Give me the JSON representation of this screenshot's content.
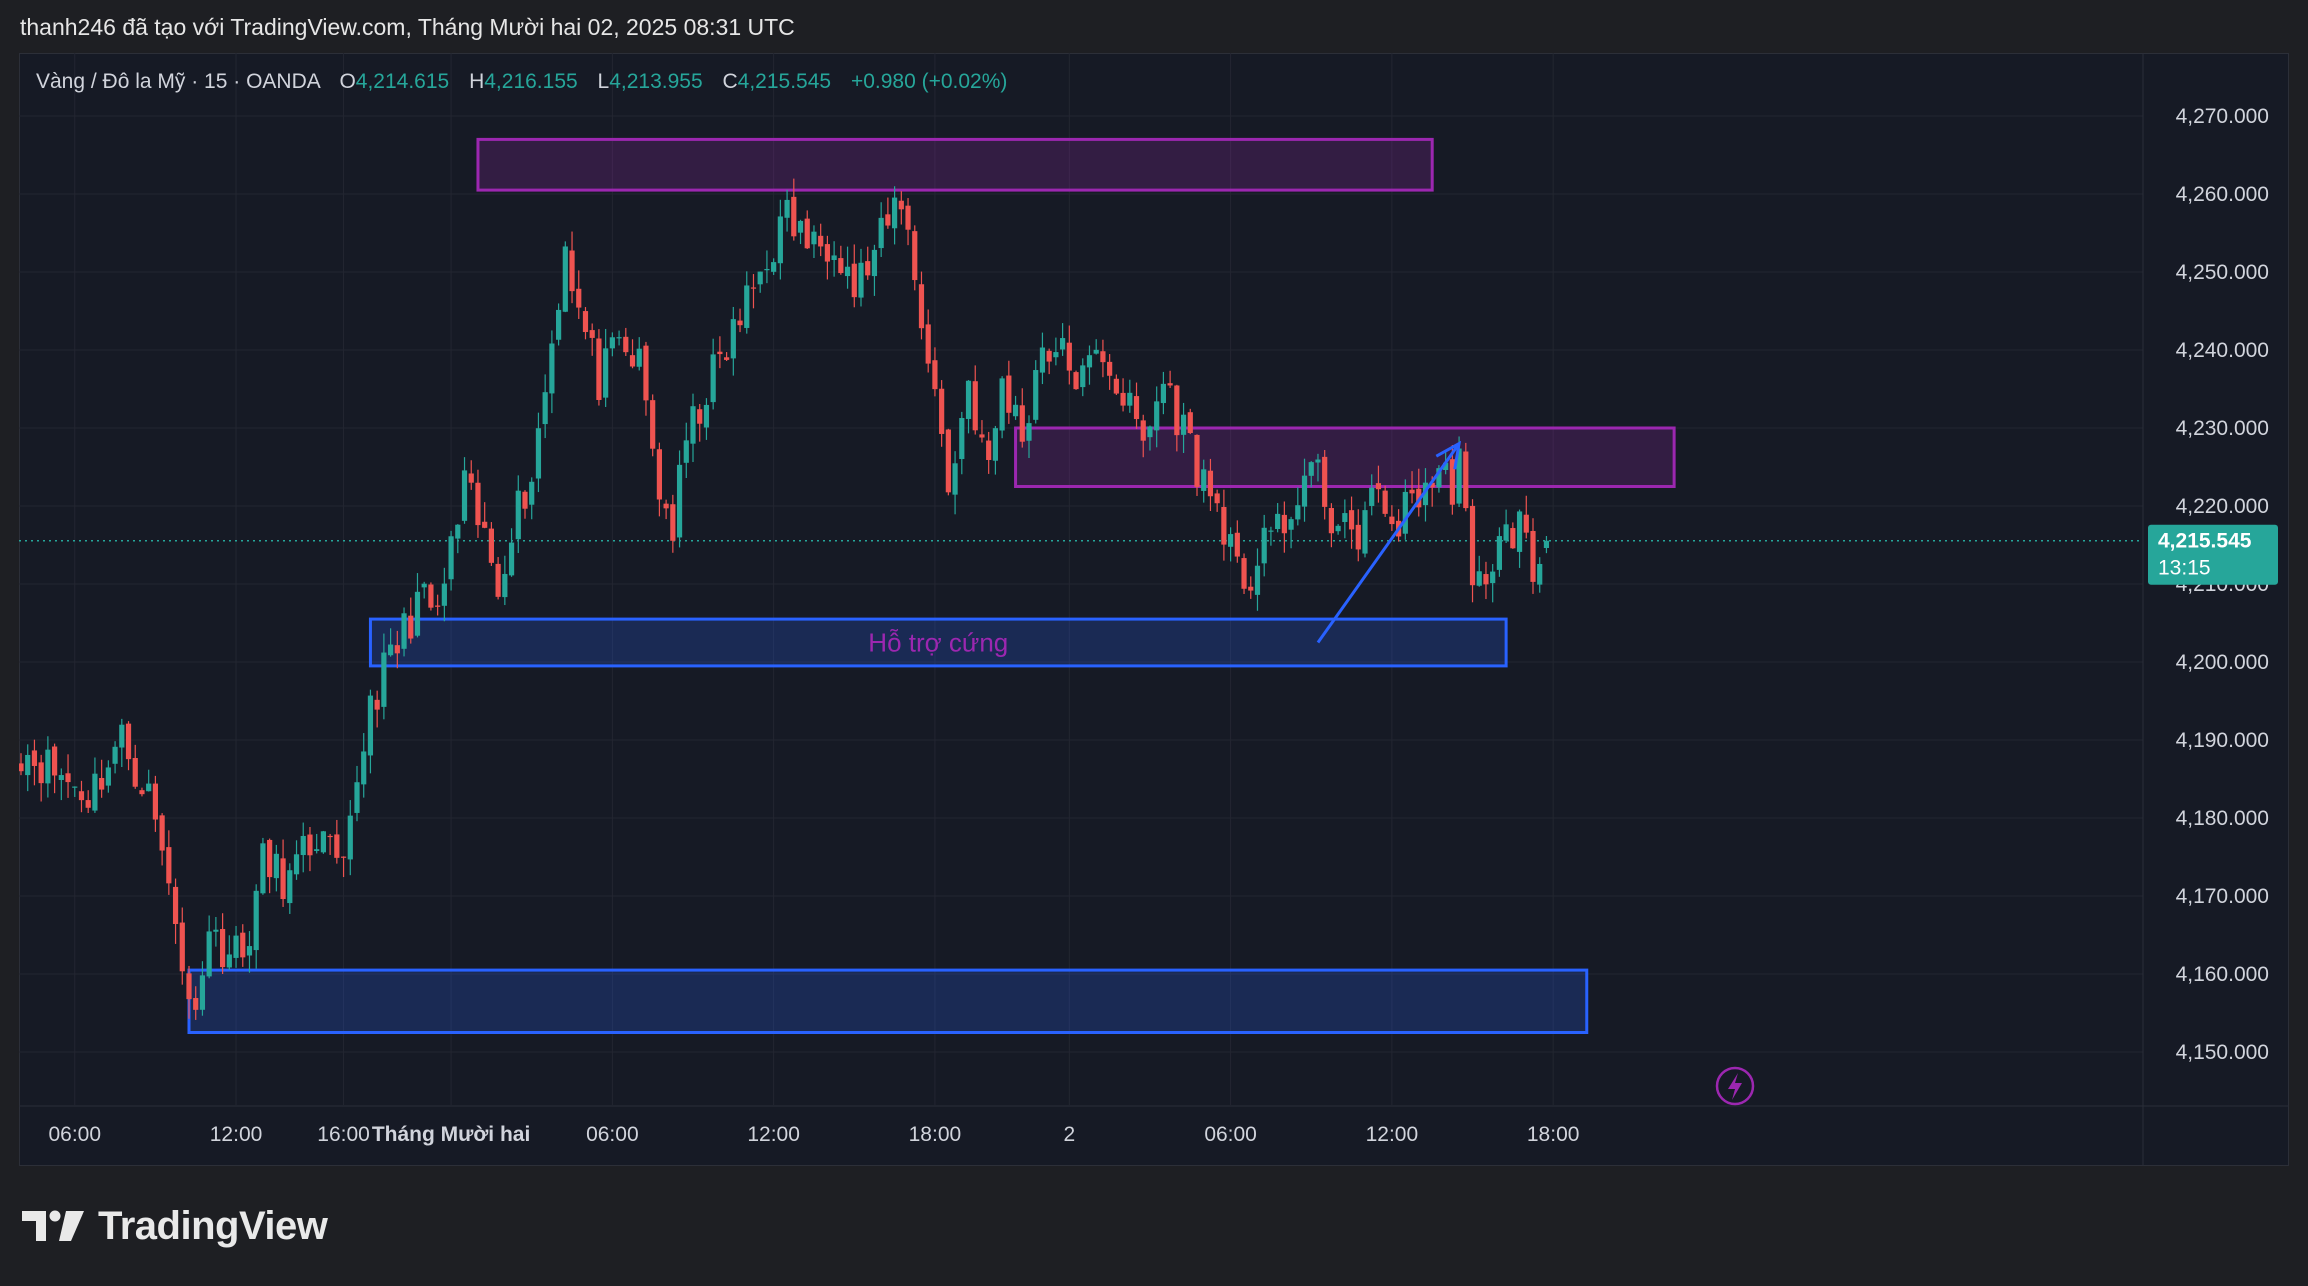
{
  "header": {
    "attribution": "thanh246 đã tạo với TradingView.com, Tháng Mười hai 02, 2025 08:31 UTC"
  },
  "legend": {
    "symbol": "Vàng / Đô la Mỹ · 15 · OANDA",
    "o_label": "O",
    "open": "4,214.615",
    "h_label": "H",
    "high": "4,216.155",
    "l_label": "L",
    "low": "4,213.955",
    "c_label": "C",
    "close": "4,215.545",
    "change": "+0.980 (+0.02%)"
  },
  "price_tag": {
    "price": "4,215.545",
    "countdown": "13:15"
  },
  "logo": {
    "text": "TradingView"
  },
  "colors": {
    "up": "#26a69a",
    "down": "#ef5350",
    "background": "#161a25",
    "resistance": "#9c27b0",
    "support": "#2962ff",
    "arrow": "#2962ff"
  },
  "chart_data": {
    "type": "candlestick",
    "interval": "15",
    "ylim": [
      4142,
      4276
    ],
    "y_ticks": [
      "4,270.000",
      "4,260.000",
      "4,250.000",
      "4,240.000",
      "4,230.000",
      "4,220.000",
      "4,210.000",
      "4,200.000",
      "4,190.000",
      "4,180.000",
      "4,170.000",
      "4,160.000",
      "4,150.000"
    ],
    "y_tick_values": [
      4270,
      4260,
      4250,
      4240,
      4230,
      4220,
      4210,
      4200,
      4190,
      4180,
      4170,
      4160,
      4150
    ],
    "x_ticks": [
      {
        "label": "06:00",
        "bar": 8
      },
      {
        "label": "12:00",
        "bar": 32
      },
      {
        "label": "16:00",
        "bar": 48
      },
      {
        "label": "Tháng Mười hai",
        "bar": 64,
        "bold": true
      },
      {
        "label": "06:00",
        "bar": 88
      },
      {
        "label": "12:00",
        "bar": 112
      },
      {
        "label": "18:00",
        "bar": 136
      },
      {
        "label": "2",
        "bar": 156
      },
      {
        "label": "06:00",
        "bar": 180
      },
      {
        "label": "12:00",
        "bar": 204
      },
      {
        "label": "18:00",
        "bar": 228
      }
    ],
    "grid": true,
    "anchors": [
      [
        0,
        4189
      ],
      [
        5,
        4186
      ],
      [
        10,
        4183
      ],
      [
        15,
        4190
      ],
      [
        19,
        4183
      ],
      [
        23,
        4168
      ],
      [
        25,
        4155
      ],
      [
        28,
        4165
      ],
      [
        33,
        4162
      ],
      [
        36,
        4174
      ],
      [
        40,
        4172
      ],
      [
        44,
        4178
      ],
      [
        48,
        4172
      ],
      [
        50,
        4185
      ],
      [
        52,
        4195
      ],
      [
        56,
        4202
      ],
      [
        59,
        4208
      ],
      [
        62,
        4206
      ],
      [
        64,
        4214
      ],
      [
        66,
        4222
      ],
      [
        68,
        4218
      ],
      [
        71,
        4210
      ],
      [
        73,
        4218
      ],
      [
        76,
        4224
      ],
      [
        79,
        4241
      ],
      [
        81,
        4254
      ],
      [
        83,
        4245
      ],
      [
        86,
        4236
      ],
      [
        89,
        4240
      ],
      [
        92,
        4238
      ],
      [
        95,
        4222
      ],
      [
        97,
        4217
      ],
      [
        99,
        4228
      ],
      [
        102,
        4235
      ],
      [
        105,
        4240
      ],
      [
        108,
        4246
      ],
      [
        111,
        4252
      ],
      [
        114,
        4257
      ],
      [
        118,
        4253
      ],
      [
        121,
        4255
      ],
      [
        124,
        4248
      ],
      [
        127,
        4252
      ],
      [
        131,
        4260
      ],
      [
        133,
        4249
      ],
      [
        136,
        4235
      ],
      [
        138,
        4222
      ],
      [
        141,
        4236
      ],
      [
        144,
        4224
      ],
      [
        146,
        4236
      ],
      [
        149,
        4229
      ],
      [
        152,
        4241
      ],
      [
        155,
        4239
      ],
      [
        158,
        4236
      ],
      [
        161,
        4240
      ],
      [
        164,
        4234
      ],
      [
        167,
        4228
      ],
      [
        170,
        4236
      ],
      [
        173,
        4230
      ],
      [
        176,
        4223
      ],
      [
        179,
        4218
      ],
      [
        182,
        4207
      ],
      [
        185,
        4218
      ],
      [
        188,
        4215
      ],
      [
        190,
        4222
      ],
      [
        192,
        4225
      ],
      [
        195,
        4219
      ],
      [
        198,
        4215
      ],
      [
        201,
        4221
      ],
      [
        203,
        4219
      ],
      [
        205,
        4218
      ],
      [
        208,
        4222
      ],
      [
        211,
        4224
      ],
      [
        213,
        4223
      ],
      [
        214,
        4227
      ],
      [
        216,
        4208
      ],
      [
        218,
        4212
      ],
      [
        221,
        4216
      ],
      [
        223,
        4218
      ],
      [
        225,
        4211
      ],
      [
        227,
        4216
      ]
    ],
    "last_bar": {
      "open": 4214.615,
      "high": 4216.155,
      "low": 4213.955,
      "close": 4215.545
    },
    "current_price": 4215.545,
    "zones": [
      {
        "kind": "resistance",
        "from_bar": 68,
        "to_bar": 210,
        "top": 4267,
        "bottom": 4260.5
      },
      {
        "kind": "resistance",
        "from_bar": 148,
        "to_bar": 246,
        "top": 4230,
        "bottom": 4222.5
      },
      {
        "kind": "support",
        "label": "Hỗ trợ cứng",
        "from_bar": 52,
        "to_bar": 221,
        "top": 4205.5,
        "bottom": 4199.5
      },
      {
        "kind": "support",
        "from_bar": 25,
        "to_bar": 233,
        "top": 4160.5,
        "bottom": 4152.5
      }
    ],
    "arrow": {
      "from_bar": 193,
      "from_price": 4202.5,
      "to_bar": 214,
      "to_price": 4228
    }
  }
}
